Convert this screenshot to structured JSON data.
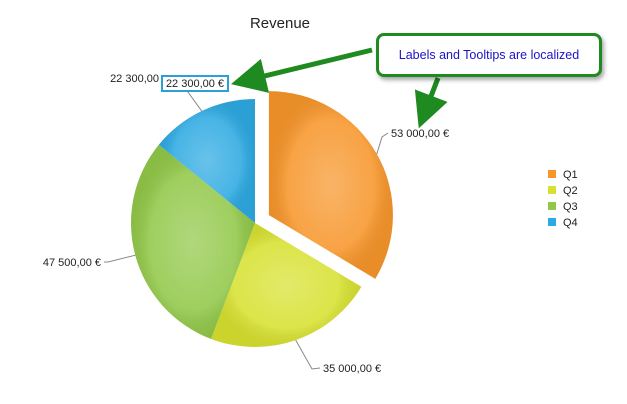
{
  "chart_data": {
    "type": "pie",
    "title": "Revenue",
    "categories": [
      "Q1",
      "Q2",
      "Q3",
      "Q4"
    ],
    "values": [
      53000,
      35000,
      47500,
      22300
    ],
    "value_labels": [
      "53 000,00 €",
      "35 000,00 €",
      "47 500,00 €",
      "22 300,00"
    ],
    "colors": [
      "#f7962b",
      "#d7e130",
      "#92c849",
      "#2eaae2"
    ],
    "exploded": [
      "Q1"
    ],
    "legend": {
      "position": "right",
      "entries": [
        "Q1",
        "Q2",
        "Q3",
        "Q4"
      ]
    }
  },
  "annotation": {
    "text": "Labels and Tooltips are localized"
  },
  "tooltip": {
    "text": "22 300,00 €"
  }
}
